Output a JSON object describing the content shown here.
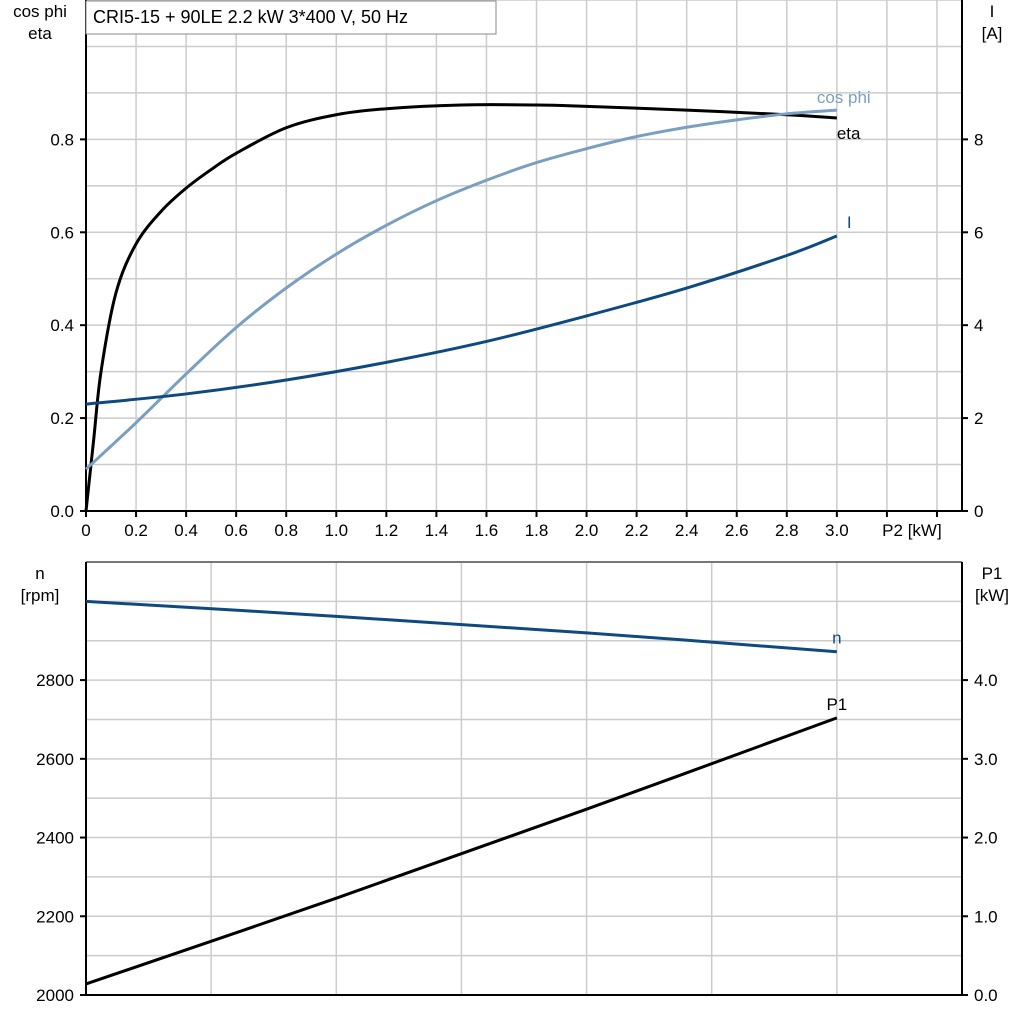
{
  "title": "CRI5-15 + 90LE   2.2 kW   3*400 V, 50 Hz",
  "colors": {
    "eta": "#000000",
    "cos_phi": "#7a9fc0",
    "I": "#0e4a80",
    "n": "#0e4a80",
    "P1": "#000000",
    "grid": "#cccccc"
  },
  "chart_data": [
    {
      "type": "line",
      "xlabel": "P2 [kW]",
      "ylabel_left": [
        "cos phi",
        "eta"
      ],
      "ylabel_right": [
        "I",
        "[A]"
      ],
      "xlim": [
        0,
        3.5
      ],
      "ylim_left": [
        0,
        1.1
      ],
      "ylim_right": [
        0,
        11
      ],
      "x_ticks": [
        "0",
        "0.2",
        "0.4",
        "0.6",
        "0.8",
        "1.0",
        "1.2",
        "1.4",
        "1.6",
        "1.8",
        "2.0",
        "2.2",
        "2.4",
        "2.6",
        "2.8",
        "3.0"
      ],
      "y_left_ticks": [
        "0.0",
        "0.2",
        "0.4",
        "0.6",
        "0.8"
      ],
      "y_right_ticks": [
        "0",
        "2",
        "4",
        "6",
        "8"
      ],
      "grid": true,
      "series": [
        {
          "name": "eta",
          "axis": "left",
          "color": "#000000",
          "x": [
            0,
            0.03,
            0.06,
            0.12,
            0.2,
            0.3,
            0.4,
            0.5,
            0.6,
            0.8,
            1.0,
            1.2,
            1.5,
            1.8,
            2.0,
            2.4,
            2.8,
            3.0
          ],
          "y": [
            0,
            0.15,
            0.3,
            0.47,
            0.575,
            0.645,
            0.695,
            0.735,
            0.77,
            0.825,
            0.853,
            0.866,
            0.874,
            0.874,
            0.871,
            0.863,
            0.853,
            0.846
          ]
        },
        {
          "name": "cos phi",
          "axis": "left",
          "color": "#7a9fc0",
          "x": [
            0,
            0.2,
            0.4,
            0.6,
            0.8,
            1.0,
            1.2,
            1.4,
            1.6,
            1.8,
            2.0,
            2.2,
            2.4,
            2.6,
            2.8,
            3.0
          ],
          "y": [
            0.09,
            0.19,
            0.295,
            0.395,
            0.48,
            0.553,
            0.615,
            0.668,
            0.712,
            0.75,
            0.78,
            0.806,
            0.826,
            0.842,
            0.855,
            0.863
          ]
        },
        {
          "name": "I",
          "axis": "right",
          "color": "#0e4a80",
          "x": [
            0,
            0.4,
            0.8,
            1.2,
            1.6,
            2.0,
            2.4,
            2.8,
            3.0
          ],
          "y": [
            2.3,
            2.52,
            2.82,
            3.2,
            3.65,
            4.2,
            4.8,
            5.5,
            5.92
          ]
        }
      ]
    },
    {
      "type": "line",
      "ylabel_left": [
        "n",
        "[rpm]"
      ],
      "ylabel_right": [
        "P1",
        "[kW]"
      ],
      "xlim": [
        0,
        3.5
      ],
      "ylim_left": [
        2000,
        3100
      ],
      "ylim_right": [
        0,
        5.5
      ],
      "y_left_ticks": [
        "2000",
        "2200",
        "2400",
        "2600",
        "2800"
      ],
      "y_right_ticks": [
        "0.0",
        "1.0",
        "2.0",
        "3.0",
        "4.0"
      ],
      "grid": true,
      "series": [
        {
          "name": "n",
          "axis": "left",
          "color": "#0e4a80",
          "x": [
            0,
            1.0,
            2.0,
            3.0
          ],
          "y": [
            3000,
            2962,
            2920,
            2872
          ]
        },
        {
          "name": "P1",
          "axis": "right",
          "color": "#000000",
          "x": [
            0,
            1.0,
            2.0,
            3.0
          ],
          "y": [
            0.14,
            1.23,
            2.36,
            3.52
          ]
        }
      ]
    }
  ]
}
